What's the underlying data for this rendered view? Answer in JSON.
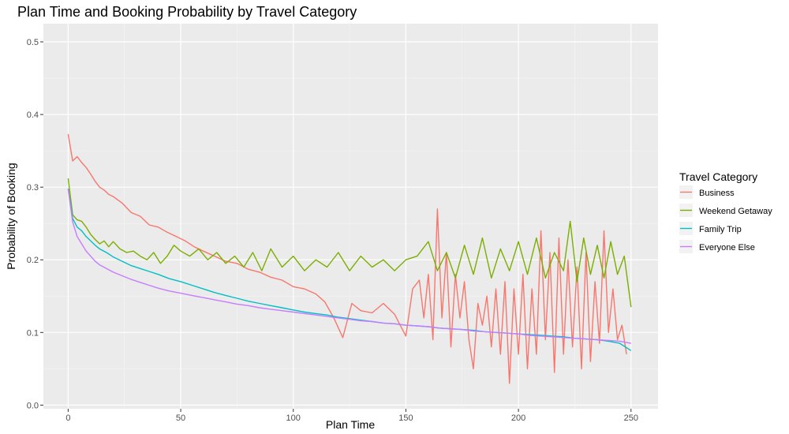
{
  "chart_data": {
    "type": "line",
    "title": "Plan Time and Booking Probability by Travel Category",
    "xlabel": "Plan Time",
    "ylabel": "Probability of Booking",
    "xlim": [
      -11,
      262
    ],
    "ylim": [
      -0.005,
      0.525
    ],
    "xticks": [
      0,
      50,
      100,
      150,
      200,
      250
    ],
    "yticks": [
      0.0,
      0.1,
      0.2,
      0.3,
      0.4,
      0.5
    ],
    "ytick_labels": [
      "0.0",
      "0.1",
      "0.2",
      "0.3",
      "0.4",
      "0.5"
    ],
    "grid": true,
    "legend": {
      "title": "Travel Category",
      "position": "right"
    },
    "series": [
      {
        "name": "Business",
        "color": "#F8766D",
        "x": [
          0,
          2,
          4,
          6,
          8,
          10,
          12,
          14,
          16,
          18,
          20,
          24,
          28,
          32,
          36,
          40,
          44,
          48,
          52,
          56,
          60,
          65,
          70,
          75,
          80,
          85,
          90,
          95,
          100,
          105,
          110,
          114,
          118,
          122,
          126,
          130,
          135,
          140,
          145,
          150,
          153,
          156,
          158,
          160,
          162,
          164,
          166,
          168,
          170,
          172,
          174,
          176,
          178,
          180,
          182,
          184,
          186,
          188,
          190,
          192,
          194,
          196,
          198,
          200,
          202,
          204,
          206,
          208,
          210,
          212,
          214,
          216,
          218,
          220,
          222,
          224,
          226,
          228,
          230,
          232,
          234,
          236,
          238,
          240,
          242,
          244,
          246,
          248
        ],
        "y": [
          0.373,
          0.336,
          0.342,
          0.334,
          0.327,
          0.318,
          0.308,
          0.3,
          0.296,
          0.29,
          0.287,
          0.278,
          0.265,
          0.26,
          0.248,
          0.245,
          0.238,
          0.232,
          0.226,
          0.218,
          0.212,
          0.205,
          0.198,
          0.195,
          0.187,
          0.183,
          0.176,
          0.172,
          0.163,
          0.16,
          0.153,
          0.142,
          0.12,
          0.093,
          0.14,
          0.13,
          0.127,
          0.14,
          0.125,
          0.095,
          0.16,
          0.172,
          0.12,
          0.18,
          0.09,
          0.27,
          0.12,
          0.21,
          0.08,
          0.18,
          0.12,
          0.17,
          0.09,
          0.05,
          0.14,
          0.11,
          0.15,
          0.08,
          0.16,
          0.07,
          0.17,
          0.03,
          0.16,
          0.07,
          0.18,
          0.05,
          0.16,
          0.07,
          0.24,
          0.09,
          0.21,
          0.045,
          0.23,
          0.07,
          0.2,
          0.08,
          0.19,
          0.05,
          0.21,
          0.06,
          0.17,
          0.085,
          0.24,
          0.1,
          0.16,
          0.09,
          0.11,
          0.07
        ]
      },
      {
        "name": "Weekend Getaway",
        "color": "#7CAE00",
        "x": [
          0,
          2,
          4,
          6,
          8,
          10,
          12,
          14,
          16,
          18,
          20,
          23,
          26,
          29,
          32,
          35,
          38,
          41,
          44,
          47,
          50,
          54,
          58,
          62,
          66,
          70,
          74,
          78,
          82,
          86,
          90,
          95,
          100,
          105,
          110,
          115,
          120,
          125,
          130,
          135,
          140,
          145,
          150,
          155,
          160,
          164,
          168,
          172,
          176,
          180,
          184,
          188,
          192,
          196,
          200,
          204,
          208,
          212,
          216,
          220,
          223,
          226,
          229,
          232,
          235,
          238,
          241,
          244,
          247,
          250
        ],
        "y": [
          0.312,
          0.262,
          0.255,
          0.253,
          0.245,
          0.235,
          0.228,
          0.222,
          0.226,
          0.218,
          0.225,
          0.215,
          0.21,
          0.212,
          0.205,
          0.2,
          0.21,
          0.195,
          0.205,
          0.22,
          0.212,
          0.205,
          0.215,
          0.2,
          0.21,
          0.195,
          0.205,
          0.19,
          0.21,
          0.185,
          0.215,
          0.19,
          0.205,
          0.185,
          0.2,
          0.19,
          0.21,
          0.185,
          0.205,
          0.19,
          0.2,
          0.185,
          0.2,
          0.205,
          0.225,
          0.185,
          0.21,
          0.175,
          0.22,
          0.18,
          0.23,
          0.175,
          0.215,
          0.185,
          0.225,
          0.18,
          0.23,
          0.175,
          0.21,
          0.185,
          0.253,
          0.17,
          0.23,
          0.18,
          0.22,
          0.175,
          0.225,
          0.18,
          0.205,
          0.135
        ]
      },
      {
        "name": "Family Trip",
        "color": "#00BFC4",
        "x": [
          0,
          2,
          4,
          6,
          8,
          10,
          12,
          14,
          17,
          20,
          24,
          28,
          32,
          36,
          40,
          45,
          50,
          55,
          60,
          65,
          70,
          75,
          80,
          85,
          90,
          95,
          100,
          105,
          110,
          115,
          120,
          125,
          130,
          135,
          140,
          145,
          150,
          155,
          160,
          165,
          170,
          175,
          180,
          185,
          190,
          195,
          200,
          205,
          210,
          215,
          220,
          225,
          230,
          235,
          240,
          245,
          250
        ],
        "y": [
          0.298,
          0.257,
          0.245,
          0.24,
          0.232,
          0.226,
          0.22,
          0.215,
          0.21,
          0.204,
          0.198,
          0.192,
          0.188,
          0.184,
          0.18,
          0.174,
          0.17,
          0.165,
          0.16,
          0.155,
          0.151,
          0.147,
          0.143,
          0.14,
          0.137,
          0.134,
          0.131,
          0.128,
          0.126,
          0.124,
          0.121,
          0.119,
          0.117,
          0.115,
          0.113,
          0.112,
          0.11,
          0.109,
          0.108,
          0.106,
          0.105,
          0.104,
          0.103,
          0.101,
          0.1,
          0.099,
          0.098,
          0.097,
          0.096,
          0.095,
          0.094,
          0.092,
          0.091,
          0.09,
          0.088,
          0.085,
          0.075
        ]
      },
      {
        "name": "Everyone Else",
        "color": "#C77CFF",
        "x": [
          0,
          2,
          4,
          6,
          8,
          10,
          12,
          14,
          17,
          20,
          24,
          28,
          32,
          36,
          40,
          45,
          50,
          55,
          60,
          65,
          70,
          75,
          80,
          85,
          90,
          95,
          100,
          105,
          110,
          115,
          120,
          125,
          130,
          135,
          140,
          145,
          150,
          155,
          160,
          165,
          170,
          175,
          180,
          185,
          190,
          195,
          200,
          205,
          210,
          215,
          220,
          225,
          230,
          235,
          240,
          245,
          250
        ],
        "y": [
          0.297,
          0.252,
          0.232,
          0.222,
          0.212,
          0.205,
          0.198,
          0.193,
          0.188,
          0.183,
          0.178,
          0.173,
          0.169,
          0.165,
          0.161,
          0.157,
          0.154,
          0.151,
          0.148,
          0.145,
          0.142,
          0.139,
          0.137,
          0.134,
          0.132,
          0.13,
          0.128,
          0.126,
          0.124,
          0.122,
          0.12,
          0.118,
          0.116,
          0.115,
          0.113,
          0.112,
          0.11,
          0.109,
          0.108,
          0.106,
          0.105,
          0.104,
          0.102,
          0.101,
          0.1,
          0.099,
          0.098,
          0.096,
          0.095,
          0.094,
          0.093,
          0.092,
          0.091,
          0.09,
          0.089,
          0.088,
          0.085
        ]
      }
    ]
  }
}
